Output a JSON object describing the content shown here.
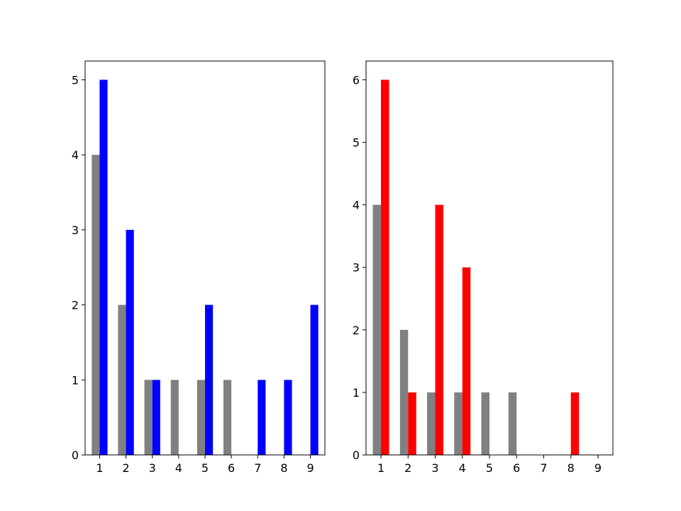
{
  "chart_data": [
    {
      "type": "bar",
      "categories": [
        "1",
        "2",
        "3",
        "4",
        "5",
        "6",
        "7",
        "8",
        "9"
      ],
      "series": [
        {
          "values": [
            4,
            2,
            1,
            1,
            1,
            1,
            0,
            0,
            0
          ],
          "color": "#808080"
        },
        {
          "values": [
            5,
            3,
            1,
            0,
            2,
            0,
            1,
            1,
            2
          ],
          "color": "#0000ff"
        }
      ],
      "ylim": [
        0,
        5.25
      ],
      "yticks": [
        "0",
        "1",
        "2",
        "3",
        "4",
        "5"
      ],
      "xlabel": "",
      "ylabel": "",
      "grid": false
    },
    {
      "type": "bar",
      "categories": [
        "1",
        "2",
        "3",
        "4",
        "5",
        "6",
        "7",
        "8",
        "9"
      ],
      "series": [
        {
          "values": [
            4,
            2,
            1,
            1,
            1,
            1,
            0,
            0,
            0
          ],
          "color": "#808080"
        },
        {
          "values": [
            6,
            1,
            4,
            3,
            0,
            0,
            0,
            1,
            0
          ],
          "color": "#ff0000"
        }
      ],
      "ylim": [
        0,
        6.3
      ],
      "yticks": [
        "0",
        "1",
        "2",
        "3",
        "4",
        "5",
        "6"
      ],
      "xlabel": "",
      "ylabel": "",
      "grid": false
    }
  ]
}
